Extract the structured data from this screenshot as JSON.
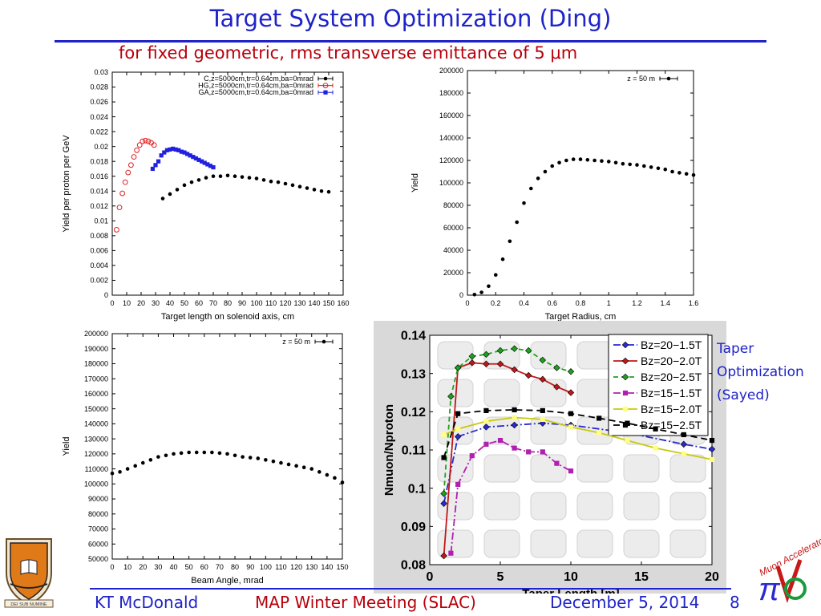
{
  "slide": {
    "title": "Target System Optimization (Ding)",
    "subtitle": "for fixed geometric, rms transverse emittance of 5 μm",
    "side_note": [
      "Taper",
      "Optimization",
      "(Sayed)"
    ],
    "footer": {
      "author": "KT McDonald",
      "meeting": "MAP Winter Meeting (SLAC)",
      "date": "December 5, 2014",
      "page": "8"
    },
    "logo_text": "DEI SUB NUMINE",
    "map_logo_text": "Muon Accelerator Program",
    "colors": {
      "title": "#1f23c8",
      "subtitle": "#b8000b"
    }
  },
  "chart_data": [
    {
      "type": "scatter",
      "xlabel": "Target length on solenoid axis, cm",
      "ylabel": "Yield per proton per GeV",
      "xlim": [
        0,
        160
      ],
      "ylim": [
        0,
        0.03
      ],
      "xticks": [
        "0",
        "10",
        "20",
        "30",
        "40",
        "50",
        "60",
        "70",
        "80",
        "90",
        "100",
        "110",
        "120",
        "130",
        "140",
        "150",
        "160"
      ],
      "yticks": [
        "0",
        "0.002",
        "0.004",
        "0.006",
        "0.008",
        "0.01",
        "0.012",
        "0.014",
        "0.016",
        "0.018",
        "0.02",
        "0.022",
        "0.024",
        "0.026",
        "0.028",
        "0.03"
      ],
      "legend": "top-right",
      "series": [
        {
          "name": "C,z=5000cm,tr=0.64cm,ba=0mrad",
          "color": "#000000",
          "marker": "dot",
          "x": [
            35,
            40,
            45,
            50,
            55,
            60,
            65,
            70,
            75,
            80,
            85,
            90,
            95,
            100,
            105,
            110,
            115,
            120,
            125,
            130,
            135,
            140,
            145,
            150
          ],
          "y": [
            0.013,
            0.0136,
            0.0142,
            0.0148,
            0.0152,
            0.0155,
            0.0158,
            0.016,
            0.016,
            0.0161,
            0.016,
            0.0159,
            0.0158,
            0.0157,
            0.0155,
            0.0153,
            0.0152,
            0.015,
            0.0148,
            0.0146,
            0.0144,
            0.0142,
            0.014,
            0.0139
          ]
        },
        {
          "name": "HG,z=5000cm,tr=0.64cm,ba=0mrad",
          "color": "#e02020",
          "marker": "circle",
          "x": [
            3,
            5,
            7,
            9,
            11,
            13,
            15,
            17,
            19,
            21,
            23,
            25,
            27,
            29
          ],
          "y": [
            0.0088,
            0.0118,
            0.0137,
            0.0152,
            0.0165,
            0.0175,
            0.0186,
            0.0195,
            0.0202,
            0.0207,
            0.0208,
            0.0207,
            0.0205,
            0.0202
          ]
        },
        {
          "name": "GA,z=5000cm,tr=0.64cm,ba=0mrad",
          "color": "#2020e0",
          "marker": "square",
          "x": [
            28,
            30,
            32,
            34,
            36,
            38,
            40,
            42,
            44,
            46,
            48,
            50,
            52,
            54,
            56,
            58,
            60,
            62,
            64,
            66,
            68,
            70
          ],
          "y": [
            0.017,
            0.0175,
            0.018,
            0.0188,
            0.0192,
            0.0195,
            0.0196,
            0.0197,
            0.0196,
            0.0195,
            0.0193,
            0.0192,
            0.019,
            0.0188,
            0.0186,
            0.0184,
            0.0182,
            0.018,
            0.0178,
            0.0176,
            0.0174,
            0.0172
          ]
        }
      ]
    },
    {
      "type": "scatter",
      "xlabel": "Target Radius, cm",
      "ylabel": "Yield",
      "xlim": [
        0,
        1.6
      ],
      "ylim": [
        0,
        200000
      ],
      "xticks": [
        "0",
        "0.2",
        "0.4",
        "0.6",
        "0.8",
        "1",
        "1.2",
        "1.4",
        "1.6"
      ],
      "yticks": [
        "0",
        "20000",
        "40000",
        "60000",
        "80000",
        "100000",
        "120000",
        "140000",
        "160000",
        "180000",
        "200000"
      ],
      "legend": "top-right",
      "series": [
        {
          "name": "z = 50 m",
          "color": "#000000",
          "marker": "dot",
          "x": [
            0.05,
            0.1,
            0.15,
            0.2,
            0.25,
            0.3,
            0.35,
            0.4,
            0.45,
            0.5,
            0.55,
            0.6,
            0.65,
            0.7,
            0.75,
            0.8,
            0.85,
            0.9,
            0.95,
            1.0,
            1.05,
            1.1,
            1.15,
            1.2,
            1.25,
            1.3,
            1.35,
            1.4,
            1.45,
            1.5,
            1.55,
            1.6
          ],
          "y": [
            500,
            2500,
            8000,
            18000,
            32000,
            48000,
            65000,
            82000,
            95000,
            104000,
            110000,
            115000,
            118000,
            120000,
            121000,
            121000,
            120500,
            120000,
            119500,
            119000,
            118000,
            117000,
            116500,
            116000,
            115000,
            114000,
            113000,
            112000,
            110000,
            109000,
            108000,
            107000
          ]
        }
      ]
    },
    {
      "type": "scatter",
      "xlabel": "Beam Angle, mrad",
      "ylabel": "Yield",
      "xlim": [
        0,
        150
      ],
      "ylim": [
        50000,
        200000
      ],
      "xticks": [
        "0",
        "10",
        "20",
        "30",
        "40",
        "50",
        "60",
        "70",
        "80",
        "90",
        "100",
        "110",
        "120",
        "130",
        "140",
        "150"
      ],
      "yticks": [
        "50000",
        "60000",
        "70000",
        "80000",
        "90000",
        "100000",
        "110000",
        "120000",
        "130000",
        "140000",
        "150000",
        "160000",
        "170000",
        "180000",
        "190000",
        "200000"
      ],
      "legend": "top-right",
      "series": [
        {
          "name": "z = 50 m",
          "color": "#000000",
          "marker": "dot",
          "x": [
            0,
            5,
            10,
            15,
            20,
            25,
            30,
            35,
            40,
            45,
            50,
            55,
            60,
            65,
            70,
            75,
            80,
            85,
            90,
            95,
            100,
            105,
            110,
            115,
            120,
            125,
            130,
            135,
            140,
            145,
            150
          ],
          "y": [
            107000,
            108000,
            110000,
            112000,
            114000,
            116000,
            118000,
            119000,
            120000,
            120500,
            121000,
            121000,
            121000,
            121000,
            120500,
            120000,
            119000,
            118000,
            117500,
            117000,
            116000,
            115000,
            114000,
            113000,
            112000,
            111000,
            110000,
            108000,
            106000,
            104000,
            101000
          ]
        }
      ]
    },
    {
      "type": "line",
      "xlabel": "Taper Length [m]",
      "ylabel": "Nmuon/Nproton",
      "xlim": [
        0,
        20
      ],
      "ylim": [
        0.08,
        0.14
      ],
      "xticks": [
        "0",
        "5",
        "10",
        "15",
        "20"
      ],
      "yticks": [
        "0.08",
        "0.09",
        "0.1",
        "0.11",
        "0.12",
        "0.13",
        "0.14"
      ],
      "legend": "top-right",
      "series": [
        {
          "name": "Bz=20−1.5T",
          "color": "#2a2ad0",
          "dash": "9,3,2,3",
          "marker": "diamond",
          "x": [
            1,
            2,
            4,
            6,
            8,
            10,
            14,
            18,
            20
          ],
          "y": [
            0.096,
            0.1135,
            0.116,
            0.1165,
            0.117,
            0.1165,
            0.1145,
            0.1115,
            0.1102
          ]
        },
        {
          "name": "Bz=20−2.0T",
          "color": "#c01818",
          "dash": "",
          "marker": "diamond",
          "x": [
            1,
            2,
            3,
            4,
            5,
            6,
            7,
            8,
            9,
            10
          ],
          "y": [
            0.0823,
            0.1315,
            0.1328,
            0.1325,
            0.1325,
            0.131,
            0.1295,
            0.1285,
            0.1265,
            0.125
          ]
        },
        {
          "name": "Bz=20−2.5T",
          "color": "#20a020",
          "dash": "6,4",
          "marker": "diamond",
          "x": [
            1,
            1.5,
            2,
            3,
            4,
            5,
            6,
            7,
            8,
            9,
            10
          ],
          "y": [
            0.0986,
            0.124,
            0.1315,
            0.1345,
            0.135,
            0.136,
            0.1365,
            0.136,
            0.1335,
            0.1315,
            0.1305
          ]
        },
        {
          "name": "Bz=15−1.5T",
          "color": "#b020b0",
          "dash": "9,3,2,3",
          "marker": "square",
          "x": [
            1.5,
            2,
            3,
            4,
            5,
            6,
            7,
            8,
            9,
            10
          ],
          "y": [
            0.083,
            0.101,
            0.1085,
            0.1115,
            0.1125,
            0.1105,
            0.1095,
            0.1095,
            0.1065,
            0.1045
          ]
        },
        {
          "name": "Bz=15−2.0T",
          "color": "#c8c810",
          "dash": "",
          "marker": "square",
          "x": [
            1,
            2,
            4,
            6,
            8,
            10,
            12,
            14,
            16,
            18,
            20
          ],
          "y": [
            0.114,
            0.1155,
            0.1175,
            0.1185,
            0.118,
            0.116,
            0.1145,
            0.1125,
            0.1105,
            0.109,
            0.1075
          ]
        },
        {
          "name": "Bz=15−2.5T",
          "color": "#000000",
          "dash": "8,5",
          "marker": "square",
          "x": [
            1,
            2,
            4,
            6,
            8,
            10,
            12,
            14,
            16,
            18,
            20
          ],
          "y": [
            0.108,
            0.1195,
            0.1203,
            0.1205,
            0.1203,
            0.1195,
            0.1183,
            0.117,
            0.1155,
            0.114,
            0.1125
          ]
        }
      ]
    }
  ]
}
